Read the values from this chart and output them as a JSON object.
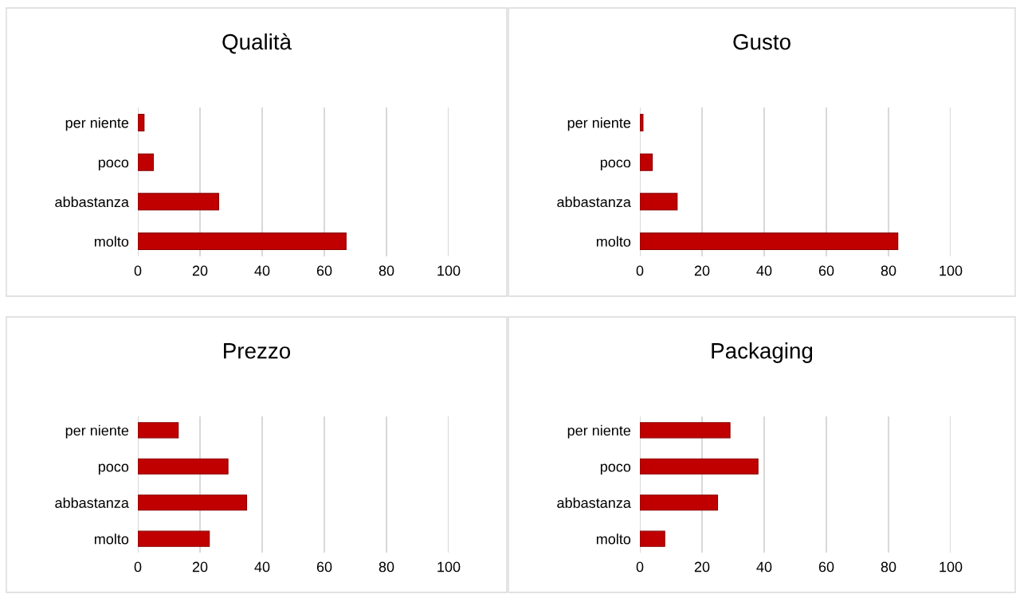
{
  "chart_data": [
    {
      "type": "bar",
      "orientation": "horizontal",
      "title": "Qualità",
      "categories": [
        "per niente",
        "poco",
        "abbastanza",
        "molto"
      ],
      "values": [
        2,
        5,
        26,
        67
      ],
      "color": "#c00000",
      "xlim": [
        0,
        100
      ],
      "xticks": [
        0,
        20,
        40,
        60,
        80,
        100
      ],
      "grid": "x"
    },
    {
      "type": "bar",
      "orientation": "horizontal",
      "title": "Gusto",
      "categories": [
        "per niente",
        "poco",
        "abbastanza",
        "molto"
      ],
      "values": [
        1,
        4,
        12,
        83
      ],
      "color": "#c00000",
      "xlim": [
        0,
        100
      ],
      "xticks": [
        0,
        20,
        40,
        60,
        80,
        100
      ],
      "grid": "x"
    },
    {
      "type": "bar",
      "orientation": "horizontal",
      "title": "Prezzo",
      "categories": [
        "per niente",
        "poco",
        "abbastanza",
        "molto"
      ],
      "values": [
        13,
        29,
        35,
        23
      ],
      "color": "#c00000",
      "xlim": [
        0,
        100
      ],
      "xticks": [
        0,
        20,
        40,
        60,
        80,
        100
      ],
      "grid": "x"
    },
    {
      "type": "bar",
      "orientation": "horizontal",
      "title": "Packaging",
      "categories": [
        "per niente",
        "poco",
        "abbastanza",
        "molto"
      ],
      "values": [
        29,
        38,
        25,
        8
      ],
      "color": "#c00000",
      "xlim": [
        0,
        100
      ],
      "xticks": [
        0,
        20,
        40,
        60,
        80,
        100
      ],
      "grid": "x"
    }
  ]
}
